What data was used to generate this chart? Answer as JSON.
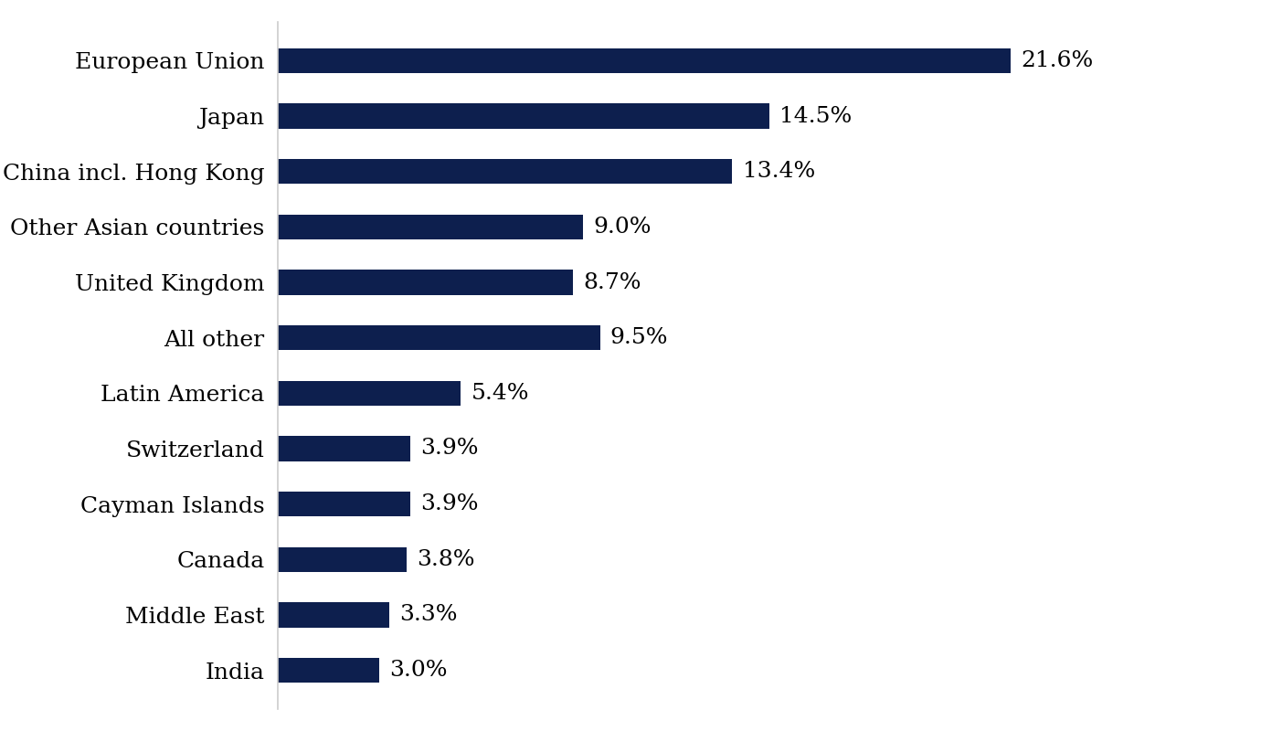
{
  "categories": [
    "India",
    "Middle East",
    "Canada",
    "Cayman Islands",
    "Switzerland",
    "Latin America",
    "All other",
    "United Kingdom",
    "Other Asian countries",
    "China incl. Hong Kong",
    "Japan",
    "European Union"
  ],
  "values": [
    3.0,
    3.3,
    3.8,
    3.9,
    3.9,
    5.4,
    9.5,
    8.7,
    9.0,
    13.4,
    14.5,
    21.6
  ],
  "labels": [
    "3.0%",
    "3.3%",
    "3.8%",
    "3.9%",
    "3.9%",
    "5.4%",
    "9.5%",
    "8.7%",
    "9.0%",
    "13.4%",
    "14.5%",
    "21.6%"
  ],
  "bar_color": "#0D1F4E",
  "background_color": "#FFFFFF",
  "label_fontsize": 18,
  "value_fontsize": 18,
  "bar_height": 0.45,
  "xlim": [
    0,
    26
  ],
  "spine_color": "#CCCCCC"
}
